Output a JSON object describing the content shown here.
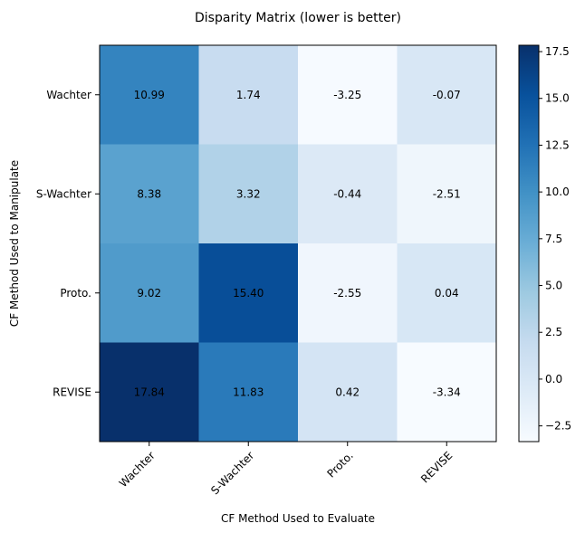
{
  "chart_data": {
    "type": "heatmap",
    "title": "Disparity Matrix (lower is better)",
    "xlabel": "CF Method Used to Evaluate",
    "ylabel": "CF Method Used to Manipulate",
    "x_categories": [
      "Wachter",
      "S-Wachter",
      "Proto.",
      "REVISE"
    ],
    "y_categories": [
      "Wachter",
      "S-Wachter",
      "Proto.",
      "REVISE"
    ],
    "values": [
      [
        10.99,
        1.74,
        -3.25,
        -0.07
      ],
      [
        8.38,
        3.32,
        -0.44,
        -2.51
      ],
      [
        9.02,
        15.4,
        -2.55,
        0.04
      ],
      [
        17.84,
        11.83,
        0.42,
        -3.34
      ]
    ],
    "cell_labels": [
      [
        "10.99",
        "1.74",
        "-3.25",
        "-0.07"
      ],
      [
        "8.38",
        "3.32",
        "-0.44",
        "-2.51"
      ],
      [
        "9.02",
        "15.40",
        "-2.55",
        "0.04"
      ],
      [
        "17.84",
        "11.83",
        "0.42",
        "-3.34"
      ]
    ],
    "colormap": "Blues",
    "color_range": [
      -3.34,
      17.84
    ],
    "colorbar_ticks": [
      -2.5,
      0.0,
      2.5,
      5.0,
      7.5,
      10.0,
      12.5,
      15.0,
      17.5
    ],
    "colorbar_tick_labels": [
      "−2.5",
      "0.0",
      "2.5",
      "5.0",
      "7.5",
      "10.0",
      "12.5",
      "15.0",
      "17.5"
    ],
    "grid": false
  }
}
